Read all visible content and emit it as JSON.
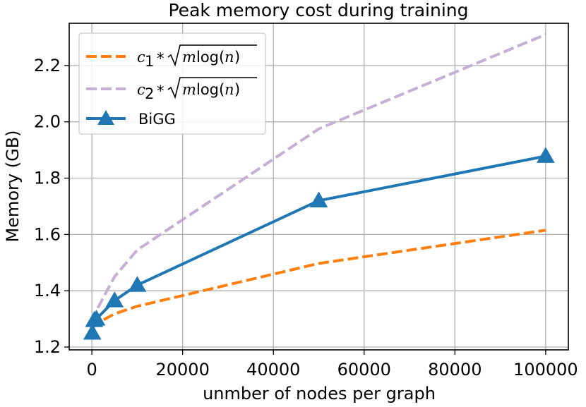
{
  "chart_data": {
    "type": "line",
    "title": "Peak memory cost during training",
    "xlabel": "unmber of nodes per graph",
    "ylabel": "Memory (GB)",
    "xlim": [
      -5000,
      105000
    ],
    "ylim": [
      1.19,
      2.35
    ],
    "xticks": [
      0,
      20000,
      40000,
      60000,
      80000,
      100000
    ],
    "yticks": [
      1.2,
      1.4,
      1.6,
      1.8,
      2.0,
      2.2
    ],
    "xtick_labels": [
      "0",
      "20000",
      "40000",
      "60000",
      "80000",
      "100000"
    ],
    "ytick_labels": [
      "1.2",
      "1.4",
      "1.6",
      "1.8",
      "2.0",
      "2.2"
    ],
    "grid": true,
    "legend_position": "top-left",
    "series": [
      {
        "name": "c1 * sqrt(m log(n))",
        "legend_label": {
          "coef": "c",
          "sub": "1",
          "op": " * ",
          "arg": "m",
          "fn": "log",
          "var": "n"
        },
        "style": "dashed",
        "color": "#ff7f0e",
        "x": [
          100,
          500,
          1000,
          5000,
          10000,
          50000,
          100000
        ],
        "values": [
          1.265,
          1.275,
          1.283,
          1.318,
          1.345,
          1.497,
          1.615
        ]
      },
      {
        "name": "c2 * sqrt(m log(n))",
        "legend_label": {
          "coef": "c",
          "sub": "2",
          "op": " * ",
          "arg": "m",
          "fn": "log",
          "var": "n"
        },
        "style": "dashed",
        "color": "#c5b0d5",
        "x": [
          100,
          500,
          1000,
          5000,
          10000,
          50000,
          100000
        ],
        "values": [
          1.29,
          1.31,
          1.33,
          1.45,
          1.545,
          1.975,
          2.31
        ]
      },
      {
        "name": "BiGG",
        "legend_label": {
          "text": "BiGG"
        },
        "style": "solid",
        "marker": "triangle",
        "color": "#1f77b4",
        "x": [
          100,
          500,
          1000,
          5000,
          10000,
          50000,
          100000
        ],
        "values": [
          1.25,
          1.295,
          1.3,
          1.365,
          1.42,
          1.72,
          1.878
        ]
      }
    ]
  }
}
